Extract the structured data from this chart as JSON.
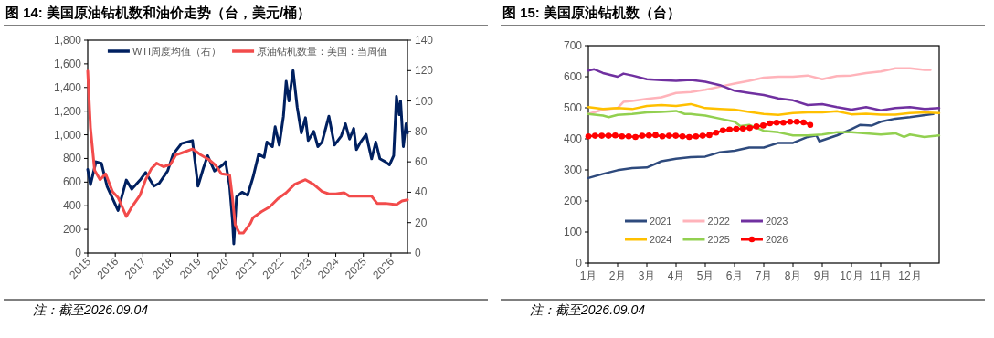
{
  "chart_data": [
    {
      "type": "line",
      "title": "图 14:  美国原油钻机数和油价走势（台，美元/桶）",
      "legend": "top",
      "xlim": [
        2015,
        2026.6
      ],
      "xticks": [
        2015,
        2016,
        2017,
        2018,
        2019,
        2020,
        2021,
        2022,
        2023,
        2024,
        2025,
        2026
      ],
      "ylim": [
        0,
        1800
      ],
      "yticks": [
        0,
        200,
        400,
        600,
        800,
        {
          "value": 1000,
          "label": "1,000"
        },
        {
          "value": 1200,
          "label": "1,200"
        },
        {
          "value": 1400,
          "label": "1,400"
        },
        {
          "value": 1600,
          "label": "1,600"
        },
        {
          "value": 1800,
          "label": "1,800"
        }
      ],
      "y2lim": [
        0,
        140
      ],
      "y2ticks": [
        0,
        20,
        40,
        60,
        80,
        100,
        120,
        140
      ],
      "annotations": [
        "注：截至2026.09.04"
      ],
      "series": [
        {
          "name": "WTI周度均值（右）",
          "color": "#002060",
          "axis": "y2",
          "x": [
            2015,
            2015.1,
            2015.3,
            2015.5,
            2015.7,
            2015.9,
            2016.1,
            2016.4,
            2016.6,
            2016.9,
            2017.1,
            2017.4,
            2017.6,
            2017.9,
            2018.1,
            2018.4,
            2018.8,
            2019,
            2019.2,
            2019.35,
            2019.6,
            2019.9,
            2020,
            2020.15,
            2020.25,
            2020.3,
            2020.4,
            2020.6,
            2020.8,
            2021,
            2021.2,
            2021.4,
            2021.5,
            2021.7,
            2021.8,
            2021.95,
            2022.1,
            2022.2,
            2022.3,
            2022.45,
            2022.6,
            2022.75,
            2022.9,
            2023,
            2023.2,
            2023.35,
            2023.5,
            2023.75,
            2023.95,
            2024.2,
            2024.35,
            2024.5,
            2024.65,
            2024.75,
            2024.9,
            2025.1,
            2025.3,
            2025.45,
            2025.6,
            2025.8,
            2025.95,
            2026.1,
            2026.2,
            2026.3,
            2026.35,
            2026.45,
            2026.55,
            2026.6
          ],
          "values": [
            55,
            45,
            60,
            59,
            44,
            36,
            28,
            48,
            42,
            48,
            53,
            44,
            46,
            54,
            65,
            72,
            74,
            44,
            56,
            64,
            54,
            58,
            60,
            44,
            22,
            6,
            37,
            40,
            38,
            50,
            65,
            63,
            73,
            70,
            83,
            71,
            90,
            113,
            100,
            120,
            96,
            79,
            89,
            74,
            80,
            70,
            73,
            90,
            71,
            77,
            85,
            75,
            82,
            68,
            73,
            78,
            62,
            73,
            62,
            60,
            58,
            64,
            103,
            91,
            100,
            70,
            85,
            79
          ]
        },
        {
          "name": "原油钻机数量：美国：当周值",
          "color": "#f24b4b",
          "x": [
            2015,
            2015.1,
            2015.25,
            2015.45,
            2015.65,
            2015.9,
            2016.1,
            2016.25,
            2016.4,
            2016.6,
            2016.9,
            2017.1,
            2017.3,
            2017.5,
            2017.75,
            2018,
            2018.2,
            2018.45,
            2018.8,
            2019.1,
            2019.4,
            2019.65,
            2019.85,
            2020.15,
            2020.25,
            2020.35,
            2020.5,
            2020.65,
            2020.9,
            2021,
            2021.3,
            2021.6,
            2021.9,
            2022.2,
            2022.5,
            2022.9,
            2023.2,
            2023.5,
            2023.75,
            2024,
            2024.3,
            2024.5,
            2024.9,
            2025.3,
            2025.5,
            2025.8,
            2026.2,
            2026.4,
            2026.6
          ],
          "values": [
            1540,
            1060,
            700,
            620,
            670,
            520,
            470,
            390,
            310,
            390,
            490,
            620,
            710,
            760,
            730,
            750,
            830,
            850,
            880,
            830,
            790,
            740,
            670,
            660,
            470,
            240,
            170,
            170,
            250,
            300,
            350,
            390,
            460,
            510,
            580,
            620,
            580,
            520,
            500,
            500,
            510,
            480,
            480,
            480,
            420,
            420,
            410,
            440,
            450
          ]
        }
      ]
    },
    {
      "type": "line",
      "title": "图 15:  美国原油钻机数（台）",
      "legend": "bottom left",
      "xlim": [
        1,
        13
      ],
      "xticks": [
        {
          "value": 1,
          "label": "1月"
        },
        {
          "value": 2,
          "label": "2月"
        },
        {
          "value": 3,
          "label": "3月"
        },
        {
          "value": 4,
          "label": "4月"
        },
        {
          "value": 5,
          "label": "5月"
        },
        {
          "value": 6,
          "label": "6月"
        },
        {
          "value": 7,
          "label": "7月"
        },
        {
          "value": 8,
          "label": "8月"
        },
        {
          "value": 9,
          "label": "9月"
        },
        {
          "value": 10,
          "label": "10月"
        },
        {
          "value": 11,
          "label": "11月"
        },
        {
          "value": 12,
          "label": "12月"
        }
      ],
      "ylim": [
        0,
        700
      ],
      "yticks": [
        0,
        100,
        200,
        300,
        400,
        500,
        600,
        700
      ],
      "annotations": [
        "注：截至2026.09.04"
      ],
      "series": [
        {
          "name": "2021",
          "color": "#2e4a7d",
          "x": [
            1,
            1.5,
            2,
            2.5,
            3,
            3.5,
            4,
            4.5,
            5,
            5.5,
            6,
            6.5,
            7,
            7.5,
            8,
            8.5,
            8.8,
            8.9,
            9.5,
            10,
            10.3,
            10.7,
            11,
            11.5,
            12,
            12.8
          ],
          "values": [
            274,
            287,
            299,
            306,
            308,
            328,
            336,
            341,
            343,
            357,
            362,
            372,
            372,
            387,
            387,
            406,
            411,
            392,
            411,
            431,
            445,
            443,
            455,
            465,
            470,
            480
          ]
        },
        {
          "name": "2022",
          "color": "#ffb3ba",
          "x": [
            1,
            1.5,
            2,
            2.2,
            2.5,
            3,
            3.5,
            4,
            4.5,
            5,
            5.5,
            6,
            6.5,
            7,
            7.5,
            8,
            8.5,
            9,
            9.5,
            10,
            10.5,
            11,
            11.5,
            12,
            12.5,
            12.7
          ],
          "values": [
            480,
            494,
            499,
            519,
            522,
            529,
            534,
            548,
            551,
            558,
            568,
            578,
            587,
            597,
            600,
            600,
            604,
            592,
            602,
            604,
            612,
            617,
            627,
            627,
            622,
            622
          ]
        },
        {
          "name": "2023",
          "color": "#7030a0",
          "x": [
            1,
            1.2,
            1.5,
            2,
            2.2,
            2.5,
            3,
            3.5,
            4,
            4.5,
            5,
            5.5,
            6,
            6.5,
            7,
            7.5,
            8,
            8.5,
            9,
            9.5,
            10,
            10.5,
            11,
            11.5,
            12,
            12.5,
            13
          ],
          "values": [
            620,
            624,
            612,
            600,
            610,
            604,
            592,
            589,
            587,
            590,
            584,
            573,
            555,
            548,
            541,
            530,
            524,
            509,
            512,
            502,
            494,
            502,
            492,
            499,
            502,
            496,
            499
          ]
        },
        {
          "name": "2024",
          "color": "#ffc000",
          "x": [
            1,
            1.5,
            2,
            2.5,
            3,
            3.5,
            4,
            4.5,
            5,
            5.5,
            6,
            6.5,
            7,
            7.5,
            8,
            8.5,
            9,
            9.5,
            10,
            10.5,
            11,
            11.5,
            12,
            12.5,
            13
          ],
          "values": [
            502,
            496,
            499,
            496,
            506,
            509,
            506,
            512,
            499,
            496,
            494,
            487,
            480,
            477,
            483,
            485,
            485,
            489,
            479,
            481,
            478,
            478,
            483,
            485,
            483
          ]
        },
        {
          "name": "2025",
          "color": "#92d050",
          "x": [
            1,
            1.5,
            1.7,
            2,
            2.5,
            3,
            3.5,
            4,
            4.3,
            4.5,
            5,
            5.5,
            6,
            6.2,
            6.5,
            7,
            7.5,
            8,
            8.5,
            9,
            9.5,
            10,
            10.5,
            11,
            11.5,
            11.8,
            12,
            12.5,
            13
          ],
          "values": [
            480,
            475,
            470,
            477,
            480,
            485,
            487,
            490,
            480,
            480,
            475,
            465,
            455,
            441,
            445,
            426,
            421,
            411,
            411,
            414,
            421,
            421,
            418,
            414,
            418,
            406,
            414,
            406,
            411
          ]
        },
        {
          "name": "2026",
          "color": "#ff0000",
          "marker": "circle",
          "x": [
            1,
            1.23,
            1.46,
            1.69,
            1.92,
            2.15,
            2.38,
            2.61,
            2.84,
            3.07,
            3.3,
            3.53,
            3.76,
            3.99,
            4.22,
            4.45,
            4.68,
            4.91,
            5.14,
            5.37,
            5.6,
            5.83,
            6.06,
            6.29,
            6.52,
            6.75,
            6.98,
            7.21,
            7.44,
            7.67,
            7.9,
            8.13,
            8.36,
            8.59
          ],
          "values": [
            408,
            410,
            410,
            410,
            411,
            408,
            408,
            406,
            410,
            411,
            412,
            408,
            410,
            410,
            408,
            406,
            408,
            410,
            412,
            420,
            427,
            430,
            432,
            433,
            435,
            440,
            443,
            450,
            452,
            452,
            455,
            455,
            453,
            445
          ]
        }
      ]
    }
  ]
}
